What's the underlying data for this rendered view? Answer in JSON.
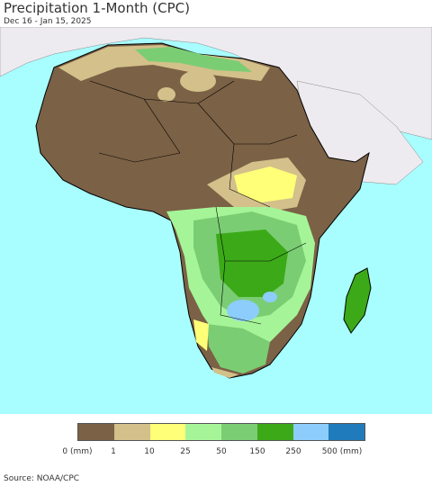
{
  "header": {
    "title": "Precipitation 1-Month (CPC)",
    "subtitle": "Dec 16 - Jan 15, 2025"
  },
  "legend": {
    "colors": [
      "#7b6145",
      "#d3c08a",
      "#ffff78",
      "#a5f598",
      "#7bcd74",
      "#3caa18",
      "#8ccdfb",
      "#1f7bbb"
    ],
    "labels": [
      "0 (mm)",
      "1",
      "10",
      "25",
      "50",
      "150",
      "250",
      "500 (mm)"
    ]
  },
  "colors": {
    "ocean": "#a8feff",
    "no_data_land": "#eeebf0",
    "borders": "#000000"
  },
  "footer": {
    "source": "Source: NOAA/CPC"
  }
}
